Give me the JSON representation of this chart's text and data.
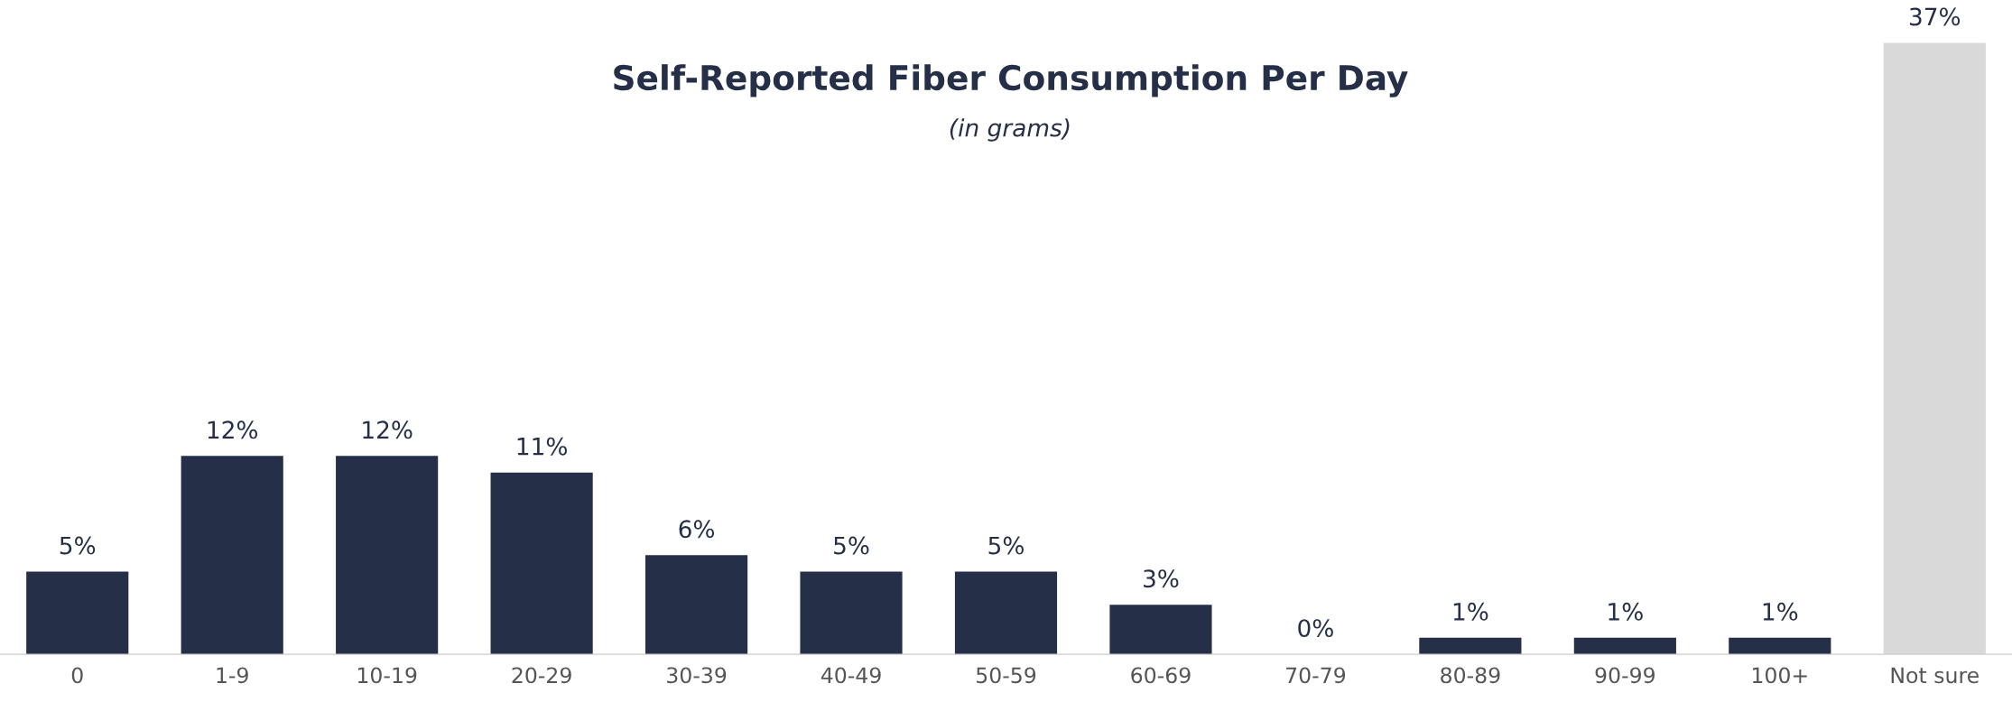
{
  "chart_data": {
    "type": "bar",
    "title": "Self-Reported Fiber Consumption Per Day",
    "subtitle": "(in grams)",
    "categories": [
      "0",
      "1-9",
      "10-19",
      "20-29",
      "30-39",
      "40-49",
      "50-59",
      "60-69",
      "70-79",
      "80-89",
      "90-99",
      "100+",
      "Not sure"
    ],
    "values": [
      5,
      12,
      12,
      11,
      6,
      5,
      5,
      3,
      0,
      1,
      1,
      1,
      37
    ],
    "colors": [
      "#252f48",
      "#252f48",
      "#252f48",
      "#252f48",
      "#252f48",
      "#252f48",
      "#252f48",
      "#252f48",
      "#252f48",
      "#252f48",
      "#252f48",
      "#252f48",
      "#d9d9d9"
    ],
    "value_labels": [
      "5%",
      "12%",
      "12%",
      "11%",
      "6%",
      "5%",
      "5%",
      "3%",
      "0%",
      "1%",
      "1%",
      "1%",
      "37%"
    ]
  }
}
